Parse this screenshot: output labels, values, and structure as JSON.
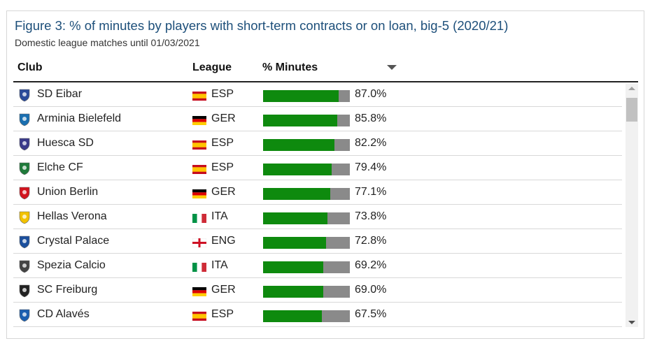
{
  "title": "Figure 3: % of minutes by players with short-term contracts or on loan, big-5 (2020/21)",
  "subtitle": "Domestic league matches until 01/03/2021",
  "columns": {
    "club": "Club",
    "league": "League",
    "minutes": "% Minutes"
  },
  "colors": {
    "bar_fill": "#0e8a0e",
    "bar_rest": "#8a8a8a",
    "title": "#1d4f7a"
  },
  "chart_data": {
    "type": "bar",
    "orientation": "horizontal",
    "title": "Figure 3: % of minutes by players with short-term contracts or on loan, big-5 (2020/21)",
    "subtitle": "Domestic league matches until 01/03/2021",
    "xlim": [
      0,
      100
    ],
    "categories": [
      "SD Eibar",
      "Arminia Bielefeld",
      "Huesca SD",
      "Elche CF",
      "Union Berlin",
      "Hellas Verona",
      "Crystal Palace",
      "Spezia Calcio",
      "SC Freiburg",
      "CD Alavés"
    ],
    "leagues": [
      "ESP",
      "GER",
      "ESP",
      "ESP",
      "GER",
      "ITA",
      "ENG",
      "ITA",
      "GER",
      "ESP"
    ],
    "values": [
      87.0,
      85.8,
      82.2,
      79.4,
      77.1,
      73.8,
      72.8,
      69.2,
      69.0,
      67.5
    ],
    "labels": [
      "87.0%",
      "85.8%",
      "82.2%",
      "79.4%",
      "77.1%",
      "73.8%",
      "72.8%",
      "69.2%",
      "69.0%",
      "67.5%"
    ]
  },
  "rows": [
    {
      "club": "SD Eibar",
      "league": "ESP",
      "flag": "flag-esp",
      "crest": "eibar-crest-icon",
      "crest_color": "#2a4a9a",
      "pct": 87.0,
      "label": "87.0%"
    },
    {
      "club": "Arminia Bielefeld",
      "league": "GER",
      "flag": "flag-ger",
      "crest": "arminia-crest-icon",
      "crest_color": "#1a6fb0",
      "pct": 85.8,
      "label": "85.8%"
    },
    {
      "club": "Huesca SD",
      "league": "ESP",
      "flag": "flag-esp",
      "crest": "huesca-crest-icon",
      "crest_color": "#3a3a8a",
      "pct": 82.2,
      "label": "82.2%"
    },
    {
      "club": "Elche CF",
      "league": "ESP",
      "flag": "flag-esp",
      "crest": "elche-crest-icon",
      "crest_color": "#1f7a3a",
      "pct": 79.4,
      "label": "79.4%"
    },
    {
      "club": "Union Berlin",
      "league": "GER",
      "flag": "flag-ger",
      "crest": "union-berlin-crest-icon",
      "crest_color": "#d2141e",
      "pct": 77.1,
      "label": "77.1%"
    },
    {
      "club": "Hellas Verona",
      "league": "ITA",
      "flag": "flag-ita",
      "crest": "hellas-verona-crest-icon",
      "crest_color": "#f2c200",
      "pct": 73.8,
      "label": "73.8%"
    },
    {
      "club": "Crystal Palace",
      "league": "ENG",
      "flag": "flag-eng",
      "crest": "crystal-palace-crest-icon",
      "crest_color": "#1b4f9c",
      "pct": 72.8,
      "label": "72.8%"
    },
    {
      "club": "Spezia Calcio",
      "league": "ITA",
      "flag": "flag-ita",
      "crest": "spezia-crest-icon",
      "crest_color": "#444444",
      "pct": 69.2,
      "label": "69.2%"
    },
    {
      "club": "SC Freiburg",
      "league": "GER",
      "flag": "flag-ger",
      "crest": "freiburg-crest-icon",
      "crest_color": "#222222",
      "pct": 69.0,
      "label": "69.0%"
    },
    {
      "club": "CD Alavés",
      "league": "ESP",
      "flag": "flag-esp",
      "crest": "alaves-crest-icon",
      "crest_color": "#1b5fb0",
      "pct": 67.5,
      "label": "67.5%"
    }
  ]
}
